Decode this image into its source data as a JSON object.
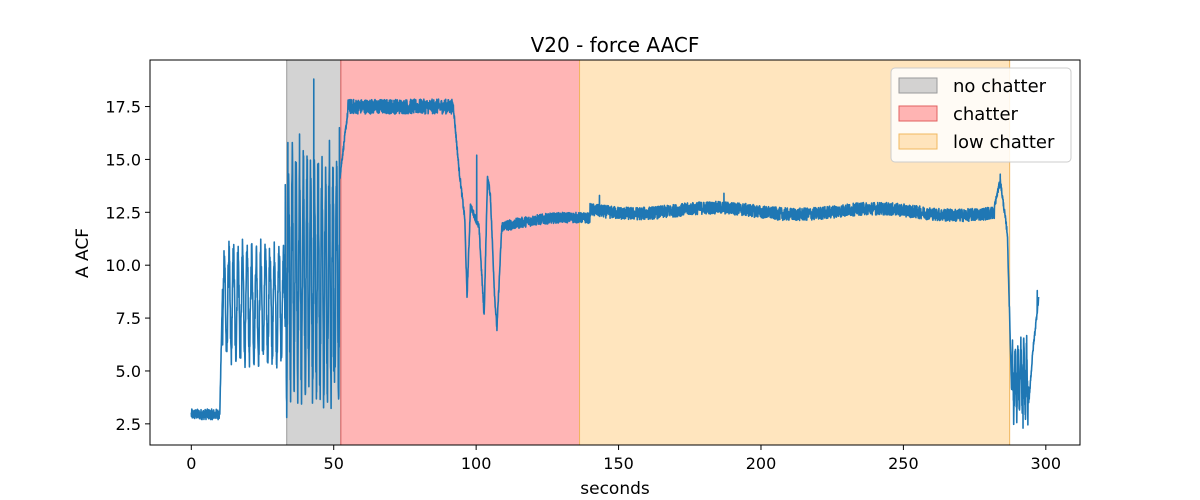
{
  "chart_data": {
    "type": "line",
    "title": "V20 - force AACF",
    "xlabel": "seconds",
    "ylabel": "A ACF",
    "xlim": [
      -14.5,
      312
    ],
    "ylim": [
      1.5,
      19.7
    ],
    "xticks": [
      0,
      50,
      100,
      150,
      200,
      250,
      300
    ],
    "yticks": [
      2.5,
      5.0,
      7.5,
      10.0,
      12.5,
      15.0,
      17.5
    ],
    "xtick_labels": [
      "0",
      "50",
      "100",
      "150",
      "200",
      "250",
      "300"
    ],
    "ytick_labels": [
      "2.5",
      "5.0",
      "7.5",
      "10.0",
      "12.5",
      "15.0",
      "17.5"
    ],
    "grid": false,
    "legend_position": "upper right",
    "regions": [
      {
        "name": "no chatter",
        "x_start": 33.5,
        "x_end": 52.5,
        "color": "#c4c4c4",
        "edge_color": "#9a9a9a"
      },
      {
        "name": "chatter",
        "x_start": 52.5,
        "x_end": 136.3,
        "color": "#ff9c9c",
        "edge_color": "#e06060"
      },
      {
        "name": "low chatter",
        "x_start": 136.3,
        "x_end": 287.3,
        "color": "#ffdca8",
        "edge_color": "#f0b860"
      }
    ],
    "series": [
      {
        "color": "#1f77b4",
        "segments": [
          {
            "x_start": 0,
            "x_end": 10,
            "kind": "noise",
            "base": 2.95,
            "amp": 0.25
          },
          {
            "x_start": 10,
            "x_end": 11,
            "kind": "ramp",
            "from": 3.0,
            "to": 9.0
          },
          {
            "x_start": 11,
            "x_end": 33,
            "kind": "osc",
            "center": 8.2,
            "amp": 2.3,
            "period": 1.6,
            "noise": 0.8
          },
          {
            "x_start": 33,
            "x_end": 52,
            "kind": "osc",
            "center": 9.5,
            "amp": 5.0,
            "period": 1.3,
            "noise": 1.4
          },
          {
            "x_start": 52,
            "x_end": 55,
            "kind": "ramp",
            "from": 14.0,
            "to": 17.3
          },
          {
            "x_start": 55,
            "x_end": 92,
            "kind": "noise",
            "base": 17.5,
            "amp": 0.35
          },
          {
            "x_start": 92,
            "x_end": 94,
            "kind": "ramp",
            "from": 17.5,
            "to": 14.5
          },
          {
            "x_start": 94,
            "x_end": 96,
            "kind": "ramp",
            "from": 14.5,
            "to": 12.2
          },
          {
            "x_start": 96,
            "x_end": 96.8,
            "kind": "ramp",
            "from": 12.2,
            "to": 8.5
          },
          {
            "x_start": 96.8,
            "x_end": 98,
            "kind": "ramp",
            "from": 8.5,
            "to": 12.8
          },
          {
            "x_start": 98,
            "x_end": 101,
            "kind": "ramp",
            "from": 12.8,
            "to": 11.8
          },
          {
            "x_start": 101,
            "x_end": 102.8,
            "kind": "ramp",
            "from": 11.8,
            "to": 7.6
          },
          {
            "x_start": 102.8,
            "x_end": 104,
            "kind": "ramp",
            "from": 7.6,
            "to": 14.2
          },
          {
            "x_start": 104,
            "x_end": 105,
            "kind": "ramp",
            "from": 14.2,
            "to": 13.3
          },
          {
            "x_start": 105,
            "x_end": 106.5,
            "kind": "ramp",
            "from": 13.3,
            "to": 8.5
          },
          {
            "x_start": 106.5,
            "x_end": 107.3,
            "kind": "ramp",
            "from": 8.5,
            "to": 7.0
          },
          {
            "x_start": 107.3,
            "x_end": 109,
            "kind": "ramp",
            "from": 7.0,
            "to": 11.8
          },
          {
            "x_start": 109,
            "x_end": 140,
            "kind": "trend",
            "from": 11.9,
            "to": 12.2,
            "amp": 0.25
          },
          {
            "x_start": 140,
            "x_end": 282,
            "kind": "trend",
            "from": 12.6,
            "to": 12.5,
            "amp": 0.3
          },
          {
            "x_start": 282,
            "x_end": 284,
            "kind": "ramp",
            "from": 12.8,
            "to": 14.0
          },
          {
            "x_start": 284,
            "x_end": 286.5,
            "kind": "ramp",
            "from": 14.0,
            "to": 11.5
          },
          {
            "x_start": 286.5,
            "x_end": 288,
            "kind": "ramp",
            "from": 11.5,
            "to": 4.0
          },
          {
            "x_start": 288,
            "x_end": 294,
            "kind": "osc",
            "center": 4.5,
            "amp": 1.4,
            "period": 1.0,
            "noise": 0.8
          },
          {
            "x_start": 294,
            "x_end": 295.5,
            "kind": "ramp",
            "from": 3.5,
            "to": 6.0
          },
          {
            "x_start": 295.5,
            "x_end": 297.5,
            "kind": "ramp",
            "from": 6.0,
            "to": 8.5
          }
        ],
        "spikes": [
          {
            "x": 33.5,
            "y": 2.8
          },
          {
            "x": 33.9,
            "y": 15.8
          },
          {
            "x": 43.0,
            "y": 18.8
          },
          {
            "x": 44.0,
            "y": 4.0
          },
          {
            "x": 38.0,
            "y": 16.2
          },
          {
            "x": 48.5,
            "y": 15.9
          },
          {
            "x": 50.0,
            "y": 5.0
          },
          {
            "x": 52.0,
            "y": 16.5
          },
          {
            "x": 100.2,
            "y": 15.2
          },
          {
            "x": 143.3,
            "y": 13.3
          },
          {
            "x": 187.0,
            "y": 13.4
          },
          {
            "x": 284.0,
            "y": 14.3
          },
          {
            "x": 292.0,
            "y": 2.3
          },
          {
            "x": 297.0,
            "y": 8.8
          }
        ]
      }
    ]
  }
}
